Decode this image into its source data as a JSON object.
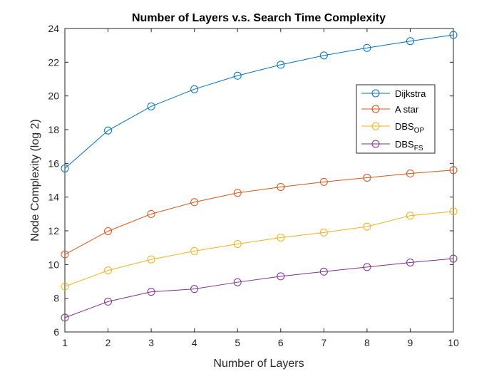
{
  "chart_data": {
    "type": "line",
    "title": "Number of Layers v.s. Search Time Complexity",
    "xlabel": "Number of Layers",
    "ylabel": "Node Complexity (log 2)",
    "xlim": [
      1,
      10
    ],
    "ylim": [
      6,
      24
    ],
    "x": [
      1,
      2,
      3,
      4,
      5,
      6,
      7,
      8,
      9,
      10
    ],
    "xticks": [
      1,
      2,
      3,
      4,
      5,
      6,
      7,
      8,
      9,
      10
    ],
    "yticks": [
      6,
      8,
      10,
      12,
      14,
      16,
      18,
      20,
      22,
      24
    ],
    "grid": false,
    "legend_position": "top-right",
    "marker": "circle",
    "series": [
      {
        "name": "Dijkstra",
        "name_base": "Dijkstra",
        "name_sub": "",
        "color": "#0072BD",
        "values": [
          15.7,
          17.95,
          19.38,
          20.4,
          21.2,
          21.85,
          22.4,
          22.85,
          23.25,
          23.62
        ]
      },
      {
        "name": "A star",
        "name_base": "A star",
        "name_sub": "",
        "color": "#D95319",
        "values": [
          10.6,
          11.98,
          13.0,
          13.7,
          14.25,
          14.6,
          14.9,
          15.15,
          15.4,
          15.6
        ]
      },
      {
        "name": "DBS_OP",
        "name_base": "DBS",
        "name_sub": "OP",
        "color": "#EDB120",
        "values": [
          8.7,
          9.65,
          10.3,
          10.8,
          11.22,
          11.6,
          11.9,
          12.25,
          12.9,
          13.15
        ]
      },
      {
        "name": "DBS_FS",
        "name_base": "DBS",
        "name_sub": "FS",
        "color": "#7E2F8E",
        "values": [
          6.85,
          7.8,
          8.38,
          8.55,
          8.95,
          9.3,
          9.58,
          9.85,
          10.12,
          10.35
        ]
      }
    ]
  }
}
